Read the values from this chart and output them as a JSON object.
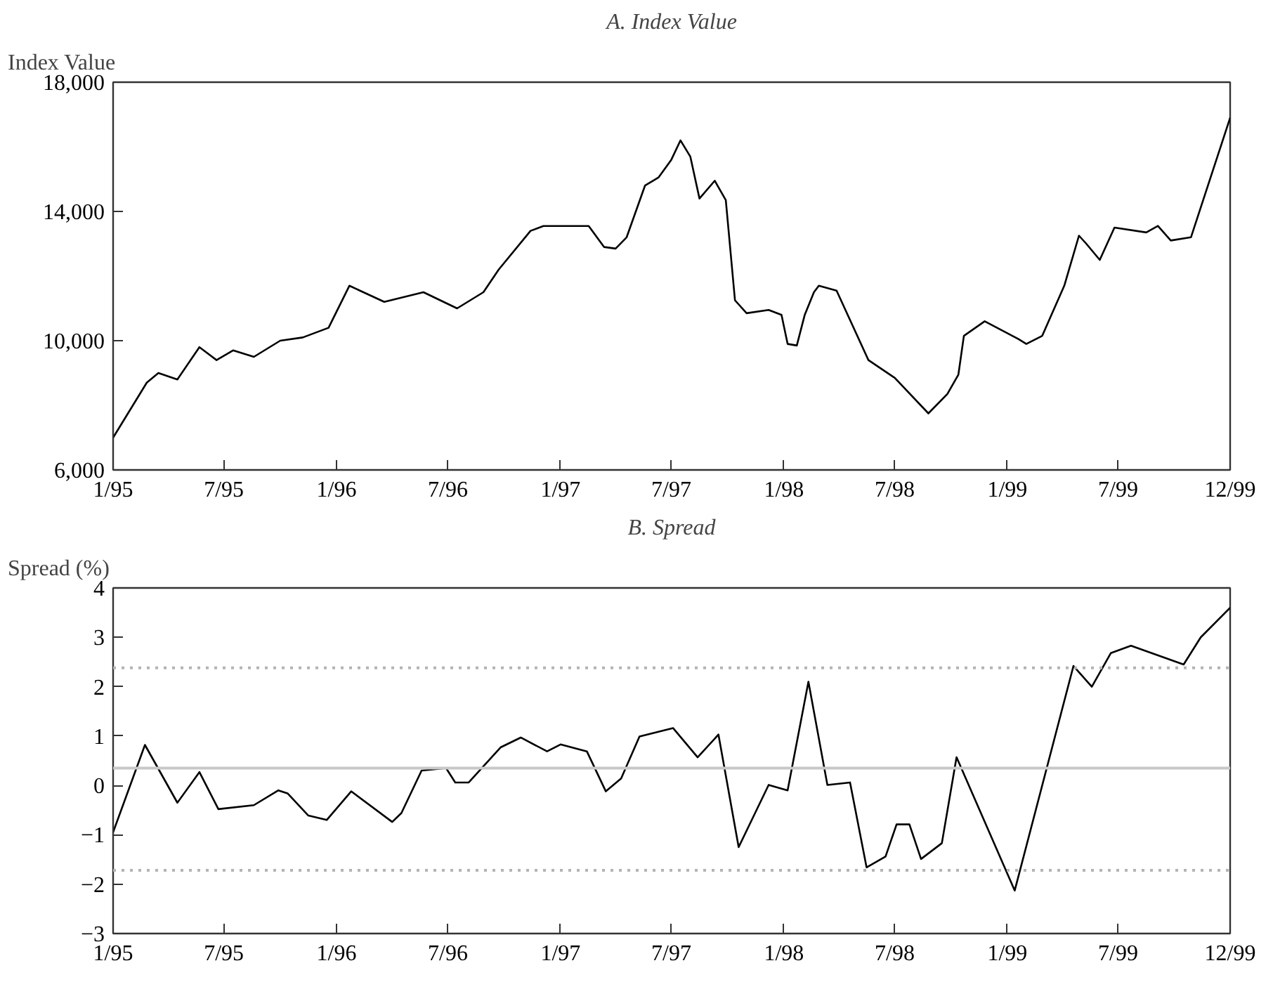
{
  "chart_data": [
    {
      "type": "line",
      "title": "A. Index Value",
      "ylabel": "Index Value",
      "grid": false,
      "line_style": "solid",
      "xlim": [
        "1995-01-01",
        "1999-12-31"
      ],
      "ylim": [
        6000,
        18000
      ],
      "xticks": [
        {
          "value": "1995-01-01",
          "label": "1/95"
        },
        {
          "value": "1995-07-01",
          "label": "7/95"
        },
        {
          "value": "1996-01-01",
          "label": "1/96"
        },
        {
          "value": "1996-07-01",
          "label": "7/96"
        },
        {
          "value": "1997-01-01",
          "label": "1/97"
        },
        {
          "value": "1997-07-01",
          "label": "7/97"
        },
        {
          "value": "1998-01-01",
          "label": "1/98"
        },
        {
          "value": "1998-07-01",
          "label": "7/98"
        },
        {
          "value": "1999-01-01",
          "label": "1/99"
        },
        {
          "value": "1999-07-01",
          "label": "7/99"
        },
        {
          "value": "1999-12-31",
          "label": "12/99"
        }
      ],
      "yticks": [
        {
          "value": 6000,
          "label": "6,000"
        },
        {
          "value": 10000,
          "label": "10,000"
        },
        {
          "value": 14000,
          "label": "14,000"
        },
        {
          "value": 18000,
          "label": "18,000"
        }
      ],
      "series": [
        {
          "color": "#000000",
          "x": [
            "1995-01-01",
            "1995-02-25",
            "1995-03-16",
            "1995-04-16",
            "1995-05-22",
            "1995-06-19",
            "1995-07-16",
            "1995-08-19",
            "1995-10-01",
            "1995-11-07",
            "1995-12-19",
            "1996-01-22",
            "1996-03-19",
            "1996-05-22",
            "1996-07-16",
            "1996-08-28",
            "1996-09-22",
            "1996-11-13",
            "1996-12-04",
            "1997-02-16",
            "1997-03-13",
            "1997-04-01",
            "1997-04-19",
            "1997-05-19",
            "1997-06-10",
            "1997-07-01",
            "1997-07-16",
            "1997-08-01",
            "1997-08-16",
            "1997-09-10",
            "1997-09-28",
            "1997-10-13",
            "1997-11-01",
            "1997-12-07",
            "1997-12-28",
            "1998-01-07",
            "1998-01-22",
            "1998-02-04",
            "1998-02-19",
            "1998-02-27",
            "1998-03-28",
            "1998-05-19",
            "1998-07-01",
            "1998-08-25",
            "1998-09-25",
            "1998-10-13",
            "1998-10-22",
            "1998-11-25",
            "1999-01-19",
            "1999-02-01",
            "1999-02-27",
            "1999-04-04",
            "1999-04-28",
            "1999-05-10",
            "1999-06-01",
            "1999-06-25",
            "1999-08-16",
            "1999-09-04",
            "1999-09-25",
            "1999-10-28",
            "1999-12-31"
          ],
          "values": [
            7000,
            8700,
            9000,
            8800,
            9800,
            9400,
            9700,
            9500,
            10000,
            10100,
            10400,
            11700,
            11200,
            11500,
            11000,
            11500,
            12200,
            13400,
            13550,
            13550,
            12900,
            12850,
            13200,
            14800,
            15050,
            15600,
            16200,
            15700,
            14400,
            14950,
            14350,
            11250,
            10850,
            10950,
            10800,
            9900,
            9850,
            10800,
            11500,
            11700,
            11550,
            9400,
            8850,
            7750,
            8350,
            8950,
            10150,
            10600,
            10050,
            9900,
            10150,
            11700,
            13250,
            13000,
            12500,
            13500,
            13350,
            13550,
            13100,
            13200,
            16900
          ]
        }
      ]
    },
    {
      "type": "line",
      "title": "B. Spread",
      "ylabel": "Spread (%)",
      "grid": false,
      "line_style": "solid",
      "xlim": [
        "1995-01-01",
        "1999-12-31"
      ],
      "ylim": [
        -3,
        4
      ],
      "xticks": [
        {
          "value": "1995-01-01",
          "label": "1/95"
        },
        {
          "value": "1995-07-01",
          "label": "7/95"
        },
        {
          "value": "1996-01-01",
          "label": "1/96"
        },
        {
          "value": "1996-07-01",
          "label": "7/96"
        },
        {
          "value": "1997-01-01",
          "label": "1/97"
        },
        {
          "value": "1997-07-01",
          "label": "7/97"
        },
        {
          "value": "1998-01-01",
          "label": "1/98"
        },
        {
          "value": "1998-07-01",
          "label": "7/98"
        },
        {
          "value": "1999-01-01",
          "label": "1/99"
        },
        {
          "value": "1999-07-01",
          "label": "7/99"
        },
        {
          "value": "1999-12-31",
          "label": "12/99"
        }
      ],
      "yticks": [
        {
          "value": -3,
          "label": "−3"
        },
        {
          "value": -2,
          "label": "−2"
        },
        {
          "value": -1,
          "label": "−1"
        },
        0,
        1,
        2,
        3,
        4
      ],
      "ref_lines": [
        {
          "axis": "y",
          "value": 0.35,
          "color": "#c8c8c8",
          "line_style": "solid"
        },
        {
          "axis": "y",
          "value": 2.38,
          "color": "#b4b4b4",
          "line_style": "dotted"
        },
        {
          "axis": "y",
          "value": -1.72,
          "color": "#b4b4b4",
          "line_style": "dotted"
        }
      ],
      "series": [
        {
          "color": "#000000",
          "x": [
            "1995-01-01",
            "1995-02-22",
            "1995-04-16",
            "1995-05-22",
            "1995-06-22",
            "1995-08-19",
            "1995-09-28",
            "1995-10-13",
            "1995-11-16",
            "1995-12-16",
            "1996-01-25",
            "1996-04-01",
            "1996-04-16",
            "1996-05-19",
            "1996-06-28",
            "1996-07-13",
            "1996-08-04",
            "1996-09-25",
            "1996-10-28",
            "1996-12-10",
            "1997-01-01",
            "1997-02-13",
            "1997-03-16",
            "1997-04-10",
            "1997-05-10",
            "1997-07-04",
            "1997-08-13",
            "1997-09-16",
            "1997-10-19",
            "1997-12-07",
            "1998-01-07",
            "1998-02-10",
            "1998-03-13",
            "1998-04-19",
            "1998-05-16",
            "1998-06-16",
            "1998-07-04",
            "1998-07-25",
            "1998-08-13",
            "1998-09-16",
            "1998-10-10",
            "1999-01-13",
            "1999-04-19",
            "1999-05-19",
            "1999-06-19",
            "1999-07-22",
            "1999-10-16",
            "1999-11-13",
            "1999-12-31"
          ],
          "values": [
            -0.95,
            0.82,
            -0.35,
            0.27,
            -0.48,
            -0.4,
            -0.1,
            -0.16,
            -0.61,
            -0.7,
            -0.12,
            -0.74,
            -0.56,
            0.3,
            0.35,
            0.06,
            0.06,
            0.77,
            0.97,
            0.69,
            0.83,
            0.69,
            -0.12,
            0.14,
            0.99,
            1.16,
            0.57,
            1.03,
            -1.25,
            0.01,
            -0.1,
            2.1,
            0.01,
            0.06,
            -1.66,
            -1.44,
            -0.79,
            -0.79,
            -1.49,
            -1.17,
            0.57,
            -2.13,
            2.42,
            2.0,
            2.68,
            2.83,
            2.45,
            3.0,
            3.6
          ]
        }
      ]
    }
  ]
}
